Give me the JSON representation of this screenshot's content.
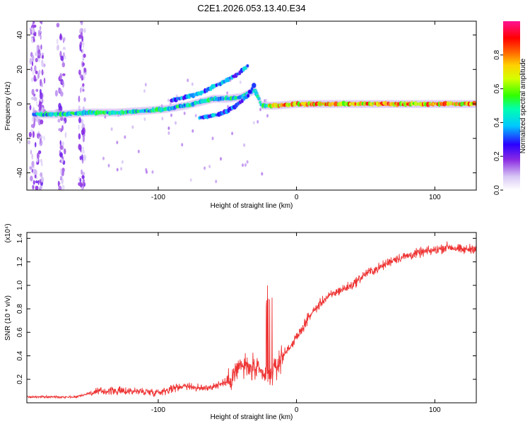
{
  "title": "C2E1.2026.053.13.40.E34",
  "chart_data": [
    {
      "type": "heatmap",
      "xlabel": "Height of straight line (km)",
      "ylabel": "Frequency (Hz)",
      "xlim": [
        -195,
        130
      ],
      "ylim": [
        -50,
        48
      ],
      "xticks": [
        -100,
        0,
        100
      ],
      "yticks": [
        -40,
        -20,
        0,
        20,
        40
      ],
      "colorbar": {
        "label": "Normalized spectral amplitude",
        "range": [
          0,
          1
        ],
        "ticks": [
          "0.0",
          "0.2",
          "0.4",
          "0.6",
          "0.8"
        ],
        "tick_values": [
          0.0,
          0.2,
          0.4,
          0.6,
          0.8
        ]
      },
      "tracks": [
        {
          "name": "carrier",
          "points": [
            [
              -190,
              -6
            ],
            [
              -170,
              -6
            ],
            [
              -150,
              -5
            ],
            [
              -130,
              -5
            ],
            [
              -110,
              -4
            ],
            [
              -95,
              -3
            ],
            [
              -80,
              -1
            ],
            [
              -70,
              1
            ],
            [
              -60,
              3
            ],
            [
              -50,
              3
            ],
            [
              -40,
              4
            ],
            [
              -30,
              8
            ],
            [
              -25,
              -1
            ],
            [
              -15,
              -1
            ],
            [
              0,
              0
            ],
            [
              50,
              0
            ],
            [
              100,
              0
            ],
            [
              130,
              0
            ]
          ]
        },
        {
          "name": "upper-branch",
          "points": [
            [
              -90,
              2
            ],
            [
              -70,
              6
            ],
            [
              -55,
              12
            ],
            [
              -45,
              16
            ],
            [
              -35,
              22
            ]
          ]
        },
        {
          "name": "lower-branch",
          "points": [
            [
              -70,
              -8
            ],
            [
              -55,
              -6
            ],
            [
              -45,
              -2
            ],
            [
              -35,
              5
            ],
            [
              -30,
              12
            ]
          ]
        }
      ]
    },
    {
      "type": "line",
      "xlabel": "Height of straight line (km)",
      "ylabel": "SNR (10 * v/v)",
      "y_multiplier": "(x10⁴)",
      "xlim": [
        -195,
        130
      ],
      "ylim": [
        0,
        1.45
      ],
      "xticks": [
        -100,
        0,
        100
      ],
      "yticks": [
        0.2,
        0.4,
        0.6,
        0.8,
        1.0,
        1.2,
        1.4
      ],
      "color": "#ee3333",
      "series": [
        {
          "name": "SNR",
          "x": [
            -195,
            -180,
            -160,
            -150,
            -140,
            -120,
            -100,
            -90,
            -80,
            -70,
            -60,
            -50,
            -40,
            -30,
            -20,
            -10,
            0,
            10,
            20,
            30,
            40,
            50,
            60,
            70,
            80,
            90,
            100,
            110,
            120,
            130
          ],
          "y": [
            0.05,
            0.05,
            0.05,
            0.08,
            0.1,
            0.1,
            0.09,
            0.12,
            0.15,
            0.12,
            0.14,
            0.18,
            0.32,
            0.28,
            0.2,
            0.4,
            0.55,
            0.75,
            0.88,
            0.95,
            1.0,
            1.1,
            1.15,
            1.22,
            1.25,
            1.28,
            1.3,
            1.33,
            1.3,
            1.32
          ]
        }
      ]
    }
  ]
}
